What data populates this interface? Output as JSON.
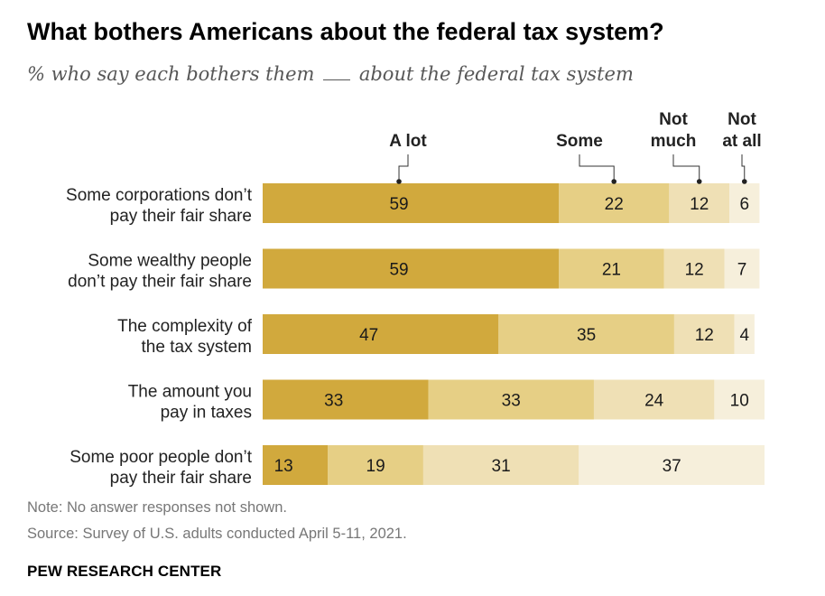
{
  "title": "What bothers Americans about the federal tax system?",
  "subtitle": {
    "before": "% who say each bothers them",
    "after": "about the federal tax system"
  },
  "colors": {
    "a_lot": "#d1a93d",
    "some": "#e6cf85",
    "not_much": "#efe0b5",
    "not_at_all": "#f6efdb",
    "text": "#1a1a1a",
    "category_label": "#222222"
  },
  "chart_data": {
    "type": "bar",
    "orientation": "horizontal",
    "stacked": true,
    "categories": [
      [
        "Some corporations don’t",
        "pay their fair share"
      ],
      [
        "Some wealthy people",
        "don’t pay their fair share"
      ],
      [
        "The complexity of",
        "the tax system"
      ],
      [
        "The amount you",
        "pay in taxes"
      ],
      [
        "Some poor people don’t",
        "pay their fair share"
      ]
    ],
    "series": [
      {
        "name": "A lot",
        "legend_lines": [
          "A lot"
        ],
        "values": [
          59,
          59,
          47,
          33,
          13
        ]
      },
      {
        "name": "Some",
        "legend_lines": [
          "Some"
        ],
        "values": [
          22,
          21,
          35,
          33,
          19
        ]
      },
      {
        "name": "Not much",
        "legend_lines": [
          "Not",
          "much"
        ],
        "values": [
          12,
          12,
          12,
          24,
          31
        ]
      },
      {
        "name": "Not at all",
        "legend_lines": [
          "Not",
          "at all"
        ],
        "values": [
          6,
          7,
          4,
          10,
          37
        ]
      }
    ],
    "xlim": [
      0,
      100
    ],
    "legend": "top, labels above first bar with leader lines",
    "grid": false
  },
  "notes": {
    "note": "Note: No answer responses not shown.",
    "source": "Source: Survey of U.S. adults conducted April 5-11, 2021."
  },
  "brand": "PEW RESEARCH CENTER"
}
